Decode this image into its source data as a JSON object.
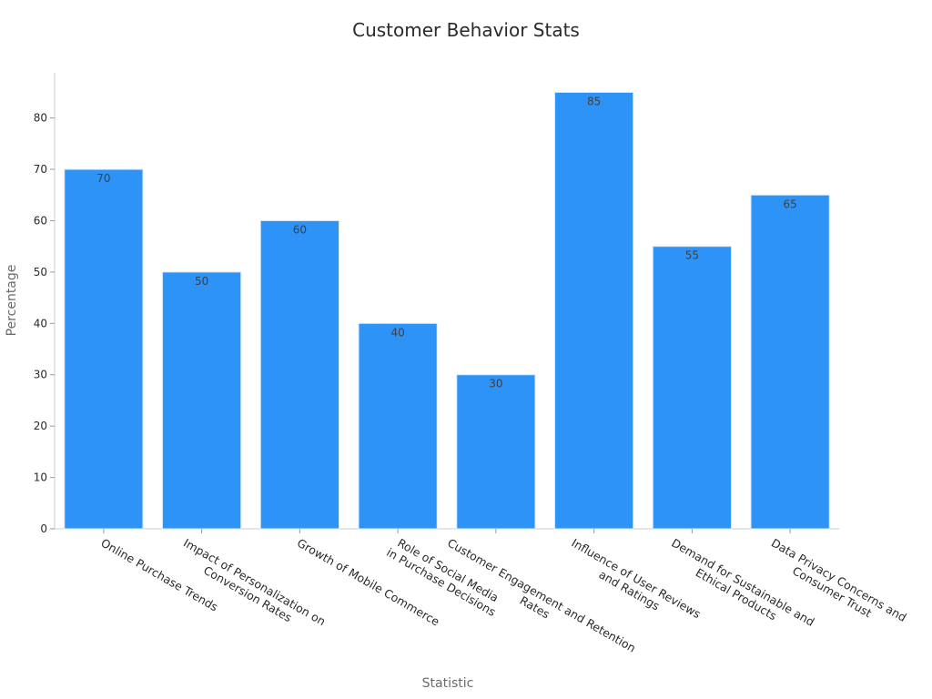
{
  "chart_data": {
    "type": "bar",
    "title": "Customer Behavior Stats",
    "xlabel": "Statistic",
    "ylabel": "Percentage",
    "categories": [
      [
        "Online Purchase Trends"
      ],
      [
        "Impact of Personalization on",
        "Conversion Rates"
      ],
      [
        "Growth of Mobile Commerce"
      ],
      [
        "Role of Social Media",
        "in Purchase Decisions"
      ],
      [
        "Customer Engagement and Retention",
        "Rates"
      ],
      [
        "Influence of User Reviews",
        "and Ratings"
      ],
      [
        "Demand for Sustainable and",
        "Ethical Products"
      ],
      [
        "Data Privacy Concerns and",
        "Consumer Trust"
      ]
    ],
    "values": [
      70,
      50,
      60,
      40,
      30,
      85,
      55,
      65
    ],
    "ylim": [
      0,
      88.8
    ],
    "yticks": [
      0,
      10,
      20,
      30,
      40,
      50,
      60,
      70,
      80
    ],
    "bar_color": "#2e93f7",
    "grid": false,
    "legend": "none"
  }
}
